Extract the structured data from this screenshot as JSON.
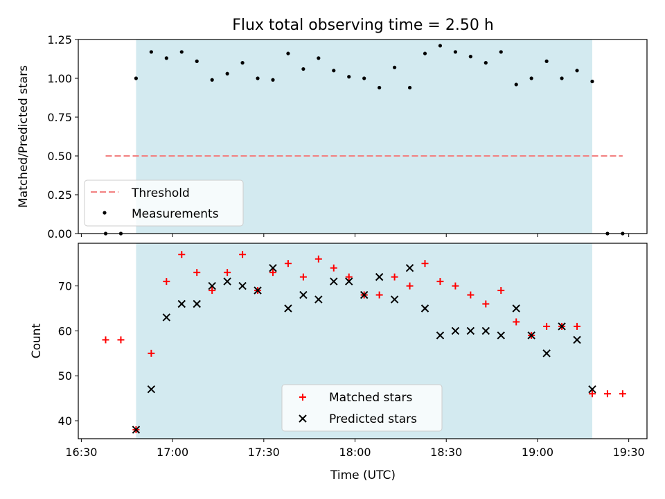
{
  "title": "Flux total observing time = 2.50 h",
  "xlabel": "Time (UTC)",
  "colors": {
    "observing_band": "#d3eaf0",
    "threshold": "#f28080",
    "measurements": "#000000",
    "matched": "#ff0000",
    "predicted": "#000000"
  },
  "chart_data": [
    {
      "type": "scatter",
      "ylabel": "Matched/Predicted stars",
      "xlim": [
        "16:29",
        "19:36"
      ],
      "ylim": [
        0,
        1.25
      ],
      "yticks": [
        0.0,
        0.25,
        0.5,
        0.75,
        1.0,
        1.25
      ],
      "ytick_labels": [
        "0.00",
        "0.25",
        "0.50",
        "0.75",
        "1.00",
        "1.25"
      ],
      "observing_band": [
        "16:48",
        "19:18"
      ],
      "legend": {
        "placement": "lower-left",
        "entries": [
          "Threshold",
          "Measurements"
        ]
      },
      "threshold": {
        "name": "Threshold",
        "value": 0.5,
        "x": [
          "16:38",
          "19:28"
        ]
      },
      "series": [
        {
          "name": "Measurements",
          "x": [
            "16:38",
            "16:43",
            "16:48",
            "16:53",
            "16:58",
            "17:03",
            "17:08",
            "17:13",
            "17:18",
            "17:23",
            "17:28",
            "17:33",
            "17:38",
            "17:43",
            "17:48",
            "17:53",
            "17:58",
            "18:03",
            "18:08",
            "18:13",
            "18:18",
            "18:23",
            "18:28",
            "18:33",
            "18:38",
            "18:43",
            "18:48",
            "18:53",
            "18:58",
            "19:03",
            "19:08",
            "19:13",
            "19:18",
            "19:23",
            "19:28"
          ],
          "y": [
            0.0,
            0.0,
            1.0,
            1.17,
            1.13,
            1.17,
            1.11,
            0.99,
            1.03,
            1.1,
            1.0,
            0.99,
            1.16,
            1.06,
            1.13,
            1.05,
            1.01,
            1.0,
            0.94,
            1.07,
            0.94,
            1.16,
            1.21,
            1.17,
            1.14,
            1.1,
            1.17,
            0.96,
            1.0,
            1.11,
            1.0,
            1.05,
            0.98,
            0.0,
            0.0
          ]
        }
      ]
    },
    {
      "type": "scatter",
      "ylabel": "Count",
      "xlim": [
        "16:29",
        "19:36"
      ],
      "ylim": [
        36,
        79.5
      ],
      "yticks": [
        40,
        50,
        60,
        70
      ],
      "ytick_labels": [
        "40",
        "50",
        "60",
        "70"
      ],
      "xticks": [
        "16:30",
        "17:00",
        "17:30",
        "18:00",
        "18:30",
        "19:00",
        "19:30"
      ],
      "xtick_labels": [
        "16:30",
        "17:00",
        "17:30",
        "18:00",
        "18:30",
        "19:00",
        "19:30"
      ],
      "observing_band": [
        "16:48",
        "19:18"
      ],
      "legend": {
        "placement": "lower-center",
        "entries": [
          "Matched stars",
          "Predicted stars"
        ]
      },
      "series": [
        {
          "name": "Matched stars",
          "x": [
            "16:38",
            "16:43",
            "16:48",
            "16:53",
            "16:58",
            "17:03",
            "17:08",
            "17:13",
            "17:18",
            "17:23",
            "17:28",
            "17:33",
            "17:38",
            "17:43",
            "17:48",
            "17:53",
            "17:58",
            "18:03",
            "18:08",
            "18:13",
            "18:18",
            "18:23",
            "18:28",
            "18:33",
            "18:38",
            "18:43",
            "18:48",
            "18:53",
            "18:58",
            "19:03",
            "19:08",
            "19:13",
            "19:18",
            "19:23",
            "19:28"
          ],
          "y": [
            58,
            58,
            38,
            55,
            71,
            77,
            73,
            69,
            73,
            77,
            69,
            73,
            75,
            72,
            76,
            74,
            72,
            68,
            68,
            72,
            70,
            75,
            71,
            70,
            68,
            66,
            69,
            62,
            59,
            61,
            61,
            61,
            46,
            46,
            46
          ]
        },
        {
          "name": "Predicted stars",
          "x": [
            "16:48",
            "16:53",
            "16:58",
            "17:03",
            "17:08",
            "17:13",
            "17:18",
            "17:23",
            "17:28",
            "17:33",
            "17:38",
            "17:43",
            "17:48",
            "17:53",
            "17:58",
            "18:03",
            "18:08",
            "18:13",
            "18:18",
            "18:23",
            "18:28",
            "18:33",
            "18:38",
            "18:43",
            "18:48",
            "18:53",
            "18:58",
            "19:03",
            "19:08",
            "19:13",
            "19:18"
          ],
          "y": [
            38,
            47,
            63,
            66,
            66,
            70,
            71,
            70,
            69,
            74,
            65,
            68,
            67,
            71,
            71,
            68,
            72,
            67,
            74,
            65,
            59,
            60,
            60,
            60,
            59,
            65,
            59,
            55,
            61,
            58,
            47
          ]
        }
      ]
    }
  ]
}
